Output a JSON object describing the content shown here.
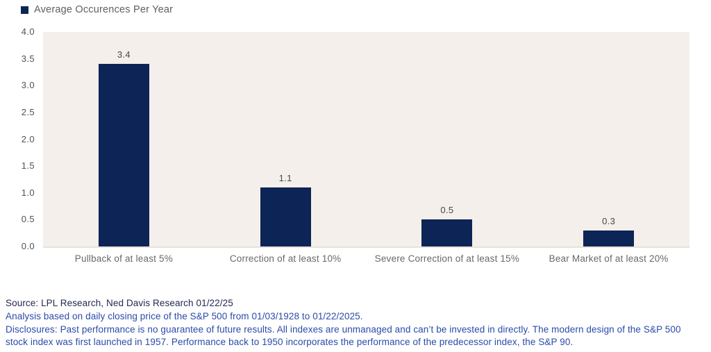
{
  "legend": {
    "label": "Average Occurences Per Year"
  },
  "chart_data": {
    "type": "bar",
    "title": "Average Occurences Per Year",
    "categories": [
      "Pullback of at least 5%",
      "Correction of at least 10%",
      "Severe Correction of at least 15%",
      "Bear Market of at least 20%"
    ],
    "values": [
      3.4,
      1.1,
      0.5,
      0.3
    ],
    "value_labels": [
      "3.4",
      "1.1",
      "0.5",
      "0.3"
    ],
    "xlabel": "",
    "ylabel": "",
    "ylim": [
      0.0,
      4.0
    ],
    "yticks": [
      "4.0",
      "3.5",
      "3.0",
      "2.5",
      "2.0",
      "1.5",
      "1.0",
      "0.5",
      "0.0"
    ],
    "grid": false,
    "legend_position": "top-left",
    "bar_color": "#0d2456",
    "plot_bg": "#f4efea"
  },
  "footer": {
    "lines": [
      {
        "text": "Source: LPL Research, Ned Davis Research 01/22/25",
        "color": "#23294d"
      },
      {
        "text": "Analysis based on daily closing price of the S&P 500 from 01/03/1928 to 01/22/2025.",
        "color": "#2a4aa8"
      },
      {
        "text": "Disclosures: Past performance is no guarantee of future results. All indexes are unmanaged and can’t be invested in directly. The modern design of the S&P 500",
        "color": "#2a4aa8"
      },
      {
        "text": "stock index was first launched in 1957. Performance back to 1950 incorporates the performance of the predecessor index, the S&P 90.",
        "color": "#2a4aa8"
      }
    ]
  }
}
